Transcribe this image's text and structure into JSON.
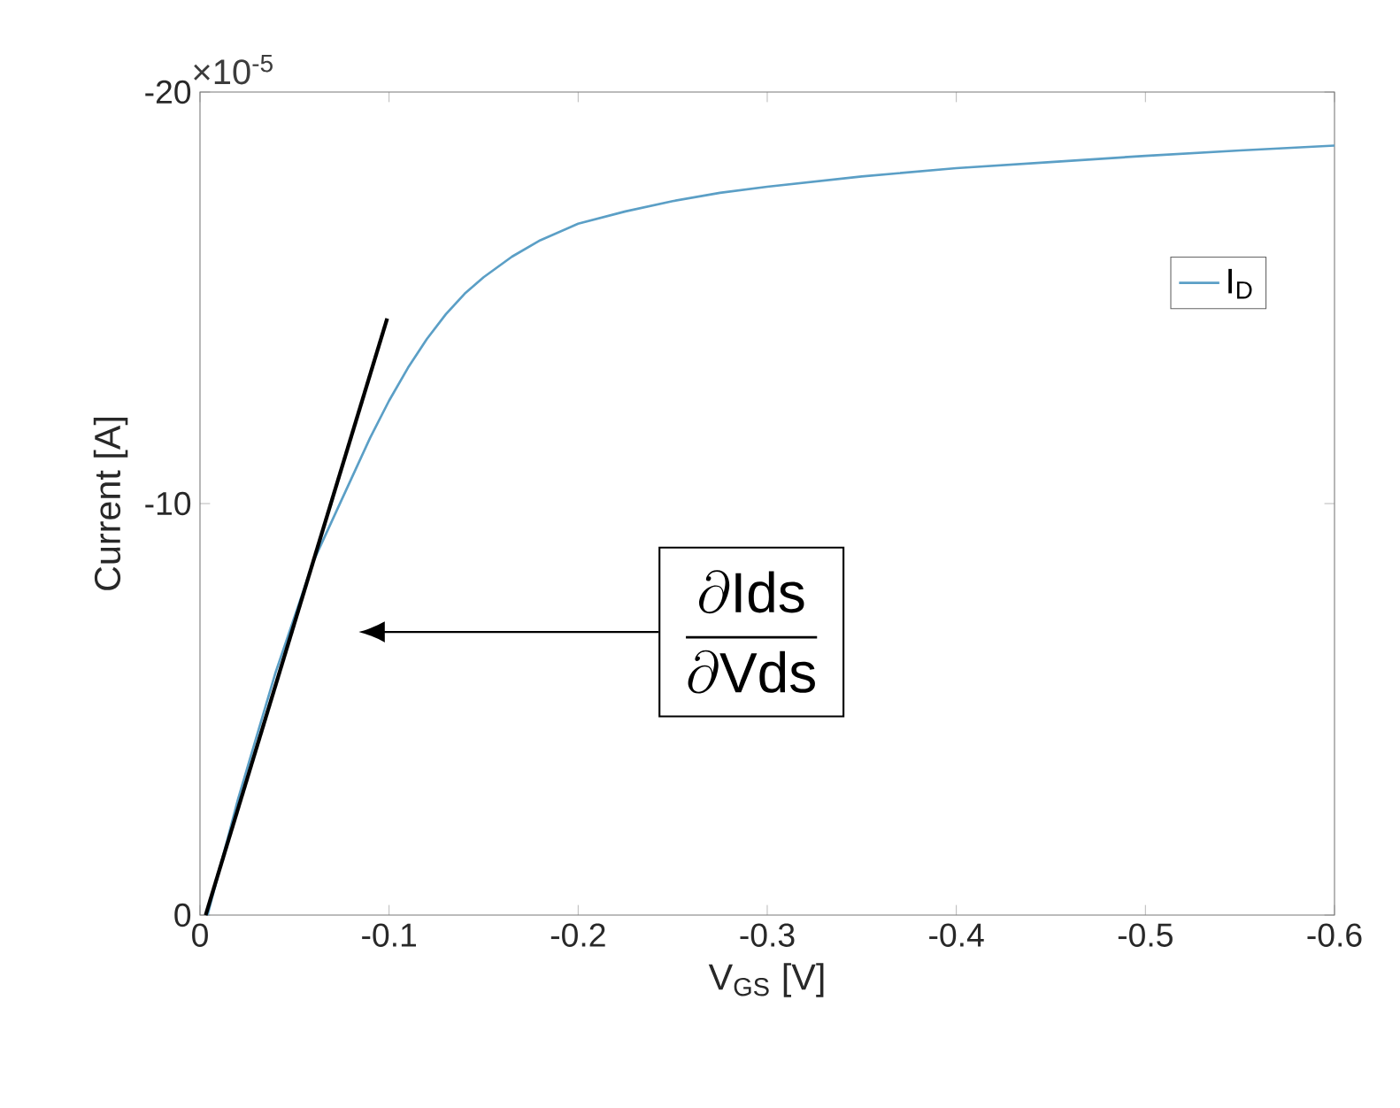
{
  "chart_data": {
    "type": "line",
    "xlabel": "V$_{GS}$ [V]",
    "ylabel": "Current [A]",
    "xlim": [
      0,
      -0.6
    ],
    "ylim": [
      0,
      -20
    ],
    "xticks": [
      0,
      -0.1,
      -0.2,
      -0.3,
      -0.4,
      -0.5,
      -0.6
    ],
    "yticks": [
      0,
      -10,
      -20
    ],
    "legend": "top right",
    "grid": false,
    "marker": "none",
    "line_style": "solid",
    "series": [
      {
        "name": "I$_{D}$",
        "color": "#5b9fc6",
        "x": [
          -0.004,
          -0.02,
          -0.04,
          -0.06,
          -0.07,
          -0.08,
          -0.09,
          -0.1,
          -0.11,
          -0.12,
          -0.13,
          -0.14,
          -0.15,
          -0.165,
          -0.18,
          -0.2,
          -0.225,
          -0.25,
          -0.275,
          -0.3,
          -0.35,
          -0.4,
          -0.45,
          -0.5,
          -0.55,
          -0.6
        ],
        "values": [
          0,
          -2.8,
          -5.9,
          -8.6,
          -9.6,
          -10.6,
          -11.6,
          -12.5,
          -13.3,
          -14.0,
          -14.6,
          -15.1,
          -15.5,
          -16.0,
          -16.4,
          -16.8,
          -17.1,
          -17.35,
          -17.55,
          -17.7,
          -17.95,
          -18.15,
          -18.3,
          -18.45,
          -18.58,
          -18.7
        ]
      },
      {
        "type": "line",
        "color": "#000000",
        "x": [
          -0.003,
          -0.099
        ],
        "values": [
          0,
          -14.5
        ]
      }
    ],
    "annotations": [
      "×10$^{-5}$",
      "\\frac{\\partial \\mathrm{Ids}}{\\partial \\mathrm{Vds}}"
    ]
  }
}
